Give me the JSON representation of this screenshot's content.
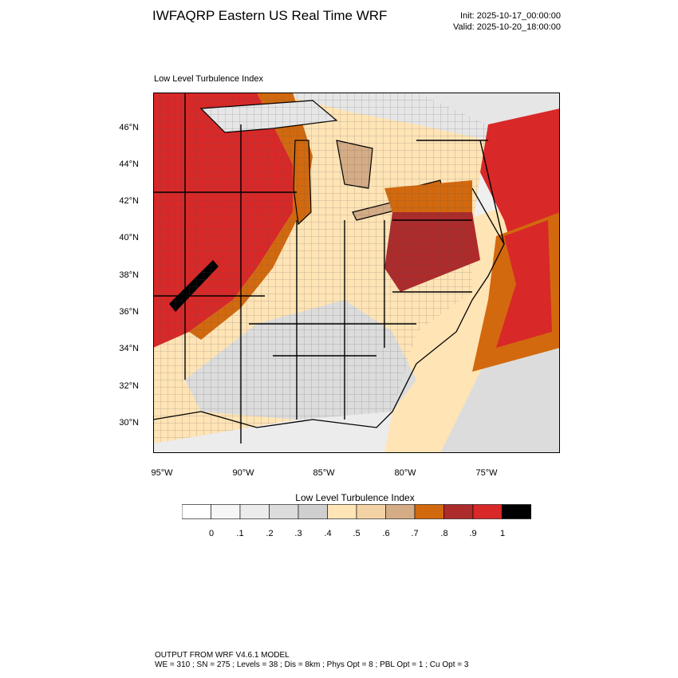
{
  "header": {
    "title": "IWFAQRP Eastern US Real Time WRF",
    "init": "Init: 2025-10-17_00:00:00",
    "valid": "Valid: 2025-10-20_18:00:00"
  },
  "plot": {
    "field_name": "Low Level Turbulence Index",
    "lat_ticks": [
      "46°N",
      "44°N",
      "42°N",
      "40°N",
      "38°N",
      "36°N",
      "34°N",
      "32°N",
      "30°N"
    ],
    "lon_ticks": [
      "95°W",
      "90°W",
      "85°W",
      "80°W",
      "75°W"
    ]
  },
  "colorbar": {
    "title": "Low Level Turbulence Index",
    "labels": [
      "0",
      ".1",
      ".2",
      ".3",
      ".4",
      ".5",
      ".6",
      ".7",
      ".8",
      ".9",
      "1"
    ],
    "colors": [
      "#ffffff",
      "#f6f6f6",
      "#ececec",
      "#dcdcdc",
      "#cfcfcf",
      "#ffe4b5",
      "#f3d3a6",
      "#d4ac86",
      "#d2690e",
      "#ad2b2b",
      "#d82828",
      "#000000"
    ]
  },
  "footer": {
    "line1": "OUTPUT FROM WRF V4.6.1 MODEL",
    "line2": "WE = 310 ; SN = 275 ; Levels = 38 ; Dis = 8km ; Phys Opt = 8 ; PBL Opt = 1 ; Cu Opt = 3"
  }
}
